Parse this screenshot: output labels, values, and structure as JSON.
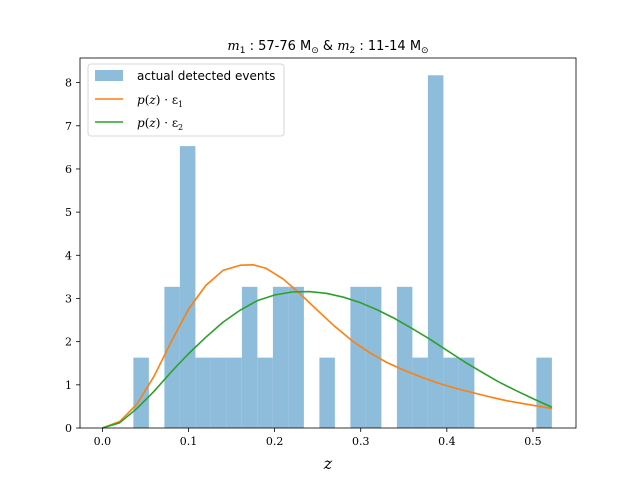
{
  "chart_data": {
    "type": "bar",
    "title_parts": {
      "m1": "m",
      "m1_sub": "1",
      "m1_range": " : 57-76 M",
      "sun1": "⊙",
      "amp": " & ",
      "m2": "m",
      "m2_sub": "2",
      "m2_range": " : 11-14 M",
      "sun2": "⊙"
    },
    "xlabel": "z",
    "ylabel": "",
    "xlim": [
      -0.026,
      0.55
    ],
    "ylim": [
      0,
      8.57
    ],
    "x_ticks": [
      "0.0",
      "0.1",
      "0.2",
      "0.3",
      "0.4",
      "0.5"
    ],
    "x_tick_values": [
      0.0,
      0.1,
      0.2,
      0.3,
      0.4,
      0.5
    ],
    "y_ticks": [
      "0",
      "1",
      "2",
      "3",
      "4",
      "5",
      "6",
      "7",
      "8"
    ],
    "y_tick_values": [
      0,
      1,
      2,
      3,
      4,
      5,
      6,
      7,
      8
    ],
    "histogram": {
      "name": "actual detected events",
      "color": "#8ebcdb",
      "bin_edges": [
        0.036,
        0.054,
        0.072,
        0.09,
        0.108,
        0.126,
        0.144,
        0.162,
        0.18,
        0.198,
        0.216,
        0.234,
        0.252,
        0.27,
        0.288,
        0.306,
        0.324,
        0.342,
        0.36,
        0.378,
        0.396,
        0.414,
        0.432,
        0.45,
        0.468,
        0.486,
        0.504,
        0.522
      ],
      "values": [
        1.63,
        0,
        3.27,
        6.53,
        1.63,
        1.63,
        1.63,
        3.27,
        1.63,
        3.27,
        3.27,
        0,
        1.63,
        0,
        3.27,
        3.27,
        0,
        3.27,
        1.63,
        8.17,
        1.63,
        1.63,
        0,
        0,
        0,
        0,
        1.63
      ]
    },
    "series": [
      {
        "name_parts": [
          "p",
          "(",
          "z",
          ") · ε",
          "1"
        ],
        "color": "#ff7f0e",
        "x": [
          0.0,
          0.02,
          0.04,
          0.06,
          0.08,
          0.1,
          0.12,
          0.14,
          0.16,
          0.175,
          0.19,
          0.21,
          0.23,
          0.25,
          0.27,
          0.29,
          0.31,
          0.33,
          0.35,
          0.37,
          0.39,
          0.41,
          0.43,
          0.45,
          0.47,
          0.49,
          0.51,
          0.522
        ],
        "y": [
          0.0,
          0.15,
          0.55,
          1.2,
          2.0,
          2.75,
          3.3,
          3.65,
          3.77,
          3.78,
          3.7,
          3.45,
          3.1,
          2.72,
          2.35,
          2.02,
          1.75,
          1.52,
          1.34,
          1.18,
          1.04,
          0.92,
          0.82,
          0.72,
          0.63,
          0.56,
          0.49,
          0.45
        ]
      },
      {
        "name_parts": [
          "p",
          "(",
          "z",
          ") · ε",
          "2"
        ],
        "color": "#2ca02c",
        "x": [
          0.0,
          0.02,
          0.04,
          0.06,
          0.08,
          0.1,
          0.12,
          0.14,
          0.16,
          0.18,
          0.2,
          0.22,
          0.24,
          0.26,
          0.28,
          0.3,
          0.32,
          0.34,
          0.36,
          0.38,
          0.4,
          0.42,
          0.44,
          0.46,
          0.48,
          0.5,
          0.522
        ],
        "y": [
          0.0,
          0.12,
          0.45,
          0.85,
          1.3,
          1.72,
          2.1,
          2.45,
          2.73,
          2.95,
          3.08,
          3.15,
          3.16,
          3.12,
          3.03,
          2.9,
          2.73,
          2.53,
          2.3,
          2.06,
          1.8,
          1.54,
          1.3,
          1.07,
          0.87,
          0.68,
          0.48
        ]
      }
    ],
    "legend_placement": "top-left",
    "grid": false
  }
}
